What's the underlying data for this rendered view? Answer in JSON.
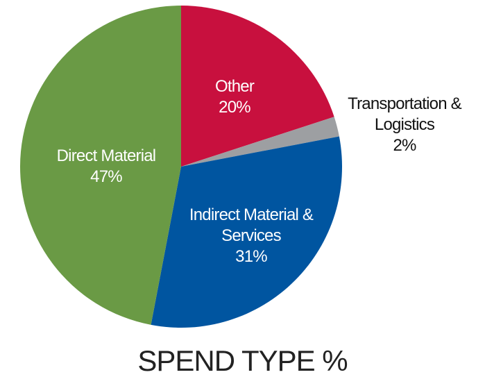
{
  "chart_data": {
    "type": "pie",
    "title": "SPEND TYPE %",
    "categories": [
      "Other",
      "Transportation & Logistics",
      "Indirect Material & Services",
      "Direct Material"
    ],
    "values": [
      20,
      2,
      31,
      47
    ],
    "value_labels": [
      "20%",
      "2%",
      "31%",
      "47%"
    ],
    "colors": [
      "#c8103e",
      "#9d9fa2",
      "#0055a0",
      "#6a9a45"
    ]
  }
}
